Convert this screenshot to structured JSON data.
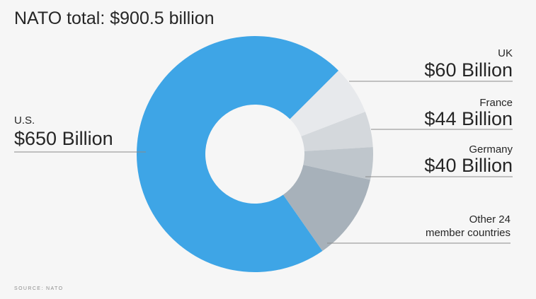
{
  "title": "NATO total: $900.5 billion",
  "source": "SOURCE: NATO",
  "chart_data": {
    "type": "pie",
    "title": "NATO total: $900.5 billion",
    "donut": true,
    "units": "billion USD",
    "slices": [
      {
        "name": "U.S.",
        "value": 650,
        "value_label": "$650 Billion",
        "color": "#3ea5e6"
      },
      {
        "name": "UK",
        "value": 60,
        "value_label": "$60 Billion",
        "color": "#e7e9ec"
      },
      {
        "name": "France",
        "value": 44,
        "value_label": "$44 Billion",
        "color": "#d4d8dc"
      },
      {
        "name": "Germany",
        "value": 40,
        "value_label": "$40 Billion",
        "color": "#bfc6cc"
      },
      {
        "name": "Other 24 member countries",
        "name_lines": [
          "Other 24",
          "member countries"
        ],
        "value": 106.5,
        "value_label": "",
        "color": "#a7b1ba"
      }
    ]
  }
}
